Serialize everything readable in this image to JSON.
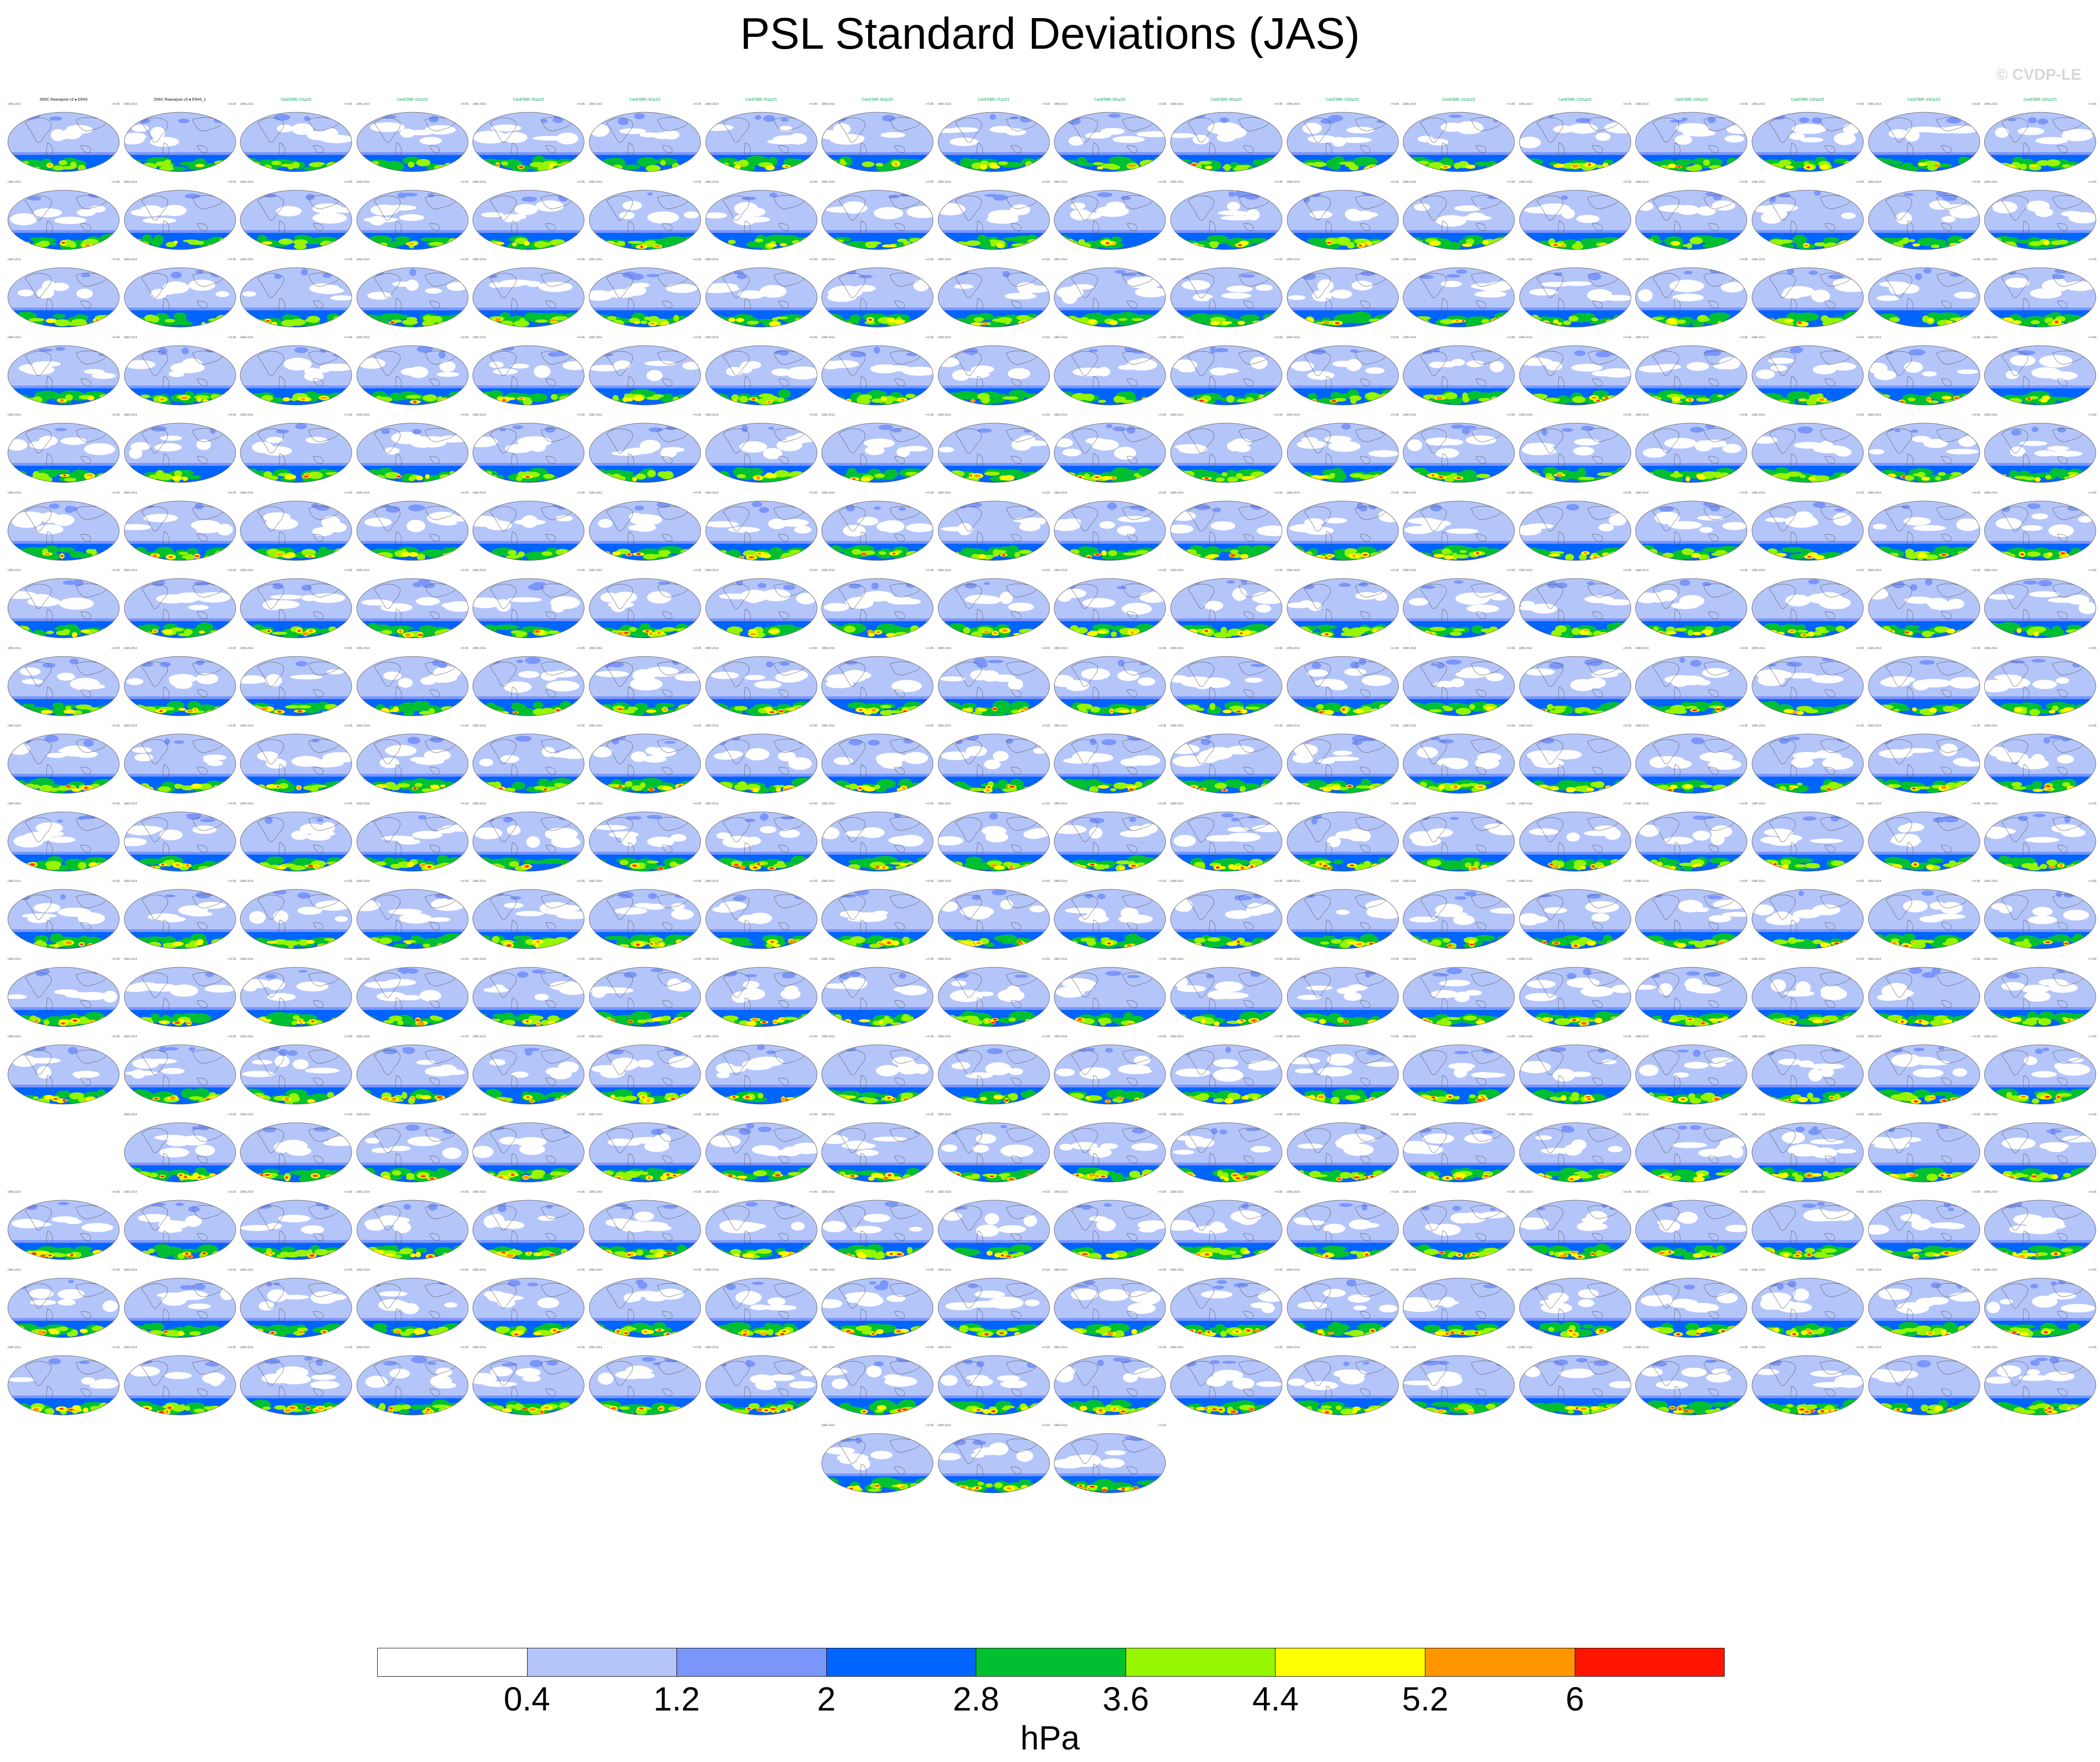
{
  "figure": {
    "title": "PSL Standard Deviations (JAS)",
    "copyright": "© CVDP-LE",
    "units": "hPa"
  },
  "colorbar": {
    "colors": [
      "#ffffff",
      "#b4c5fa",
      "#7b96fa",
      "#0064ff",
      "#00c032",
      "#96f500",
      "#ffff00",
      "#ff9600",
      "#ff1400"
    ],
    "tick_labels": [
      "0.4",
      "1.2",
      "2",
      "2.8",
      "3.6",
      "4.4",
      "5.2",
      "6"
    ]
  },
  "panel_titles": [
    "20thC Reanalysis v3 ● ERA5",
    "20thC Reanalysis v3 ● ERA5_1",
    "CanESM5 r1i1p1f1",
    "CanESM5 r2i1p1f1",
    "CanESM5 r3i1p1f1",
    "CanESM5 r4i1p1f1",
    "CanESM5 r5i1p1f1",
    "CanESM5 r6i1p1f1",
    "CanESM5 r7i1p1f1",
    "CanESM5 r8i1p1f1",
    "CanESM5 r9i1p1f1",
    "CanESM5 r10i1p1f1",
    "CanESM5 r11i1p1f1",
    "CanESM5 r12i1p1f1",
    "CanESM5 r13i1p1f1",
    "CanESM5 r14i1p1f1",
    "CanESM5 r15i1p1f1",
    "CanESM5 r16i1p1f1"
  ],
  "panel_period": "1980-2014",
  "panel_r_label": "r=0.95",
  "grid": {
    "rows": 18,
    "cols": 18,
    "empty_cells": [
      [
        13,
        0
      ]
    ],
    "last_row_cols": [
      7,
      8,
      9
    ]
  }
}
